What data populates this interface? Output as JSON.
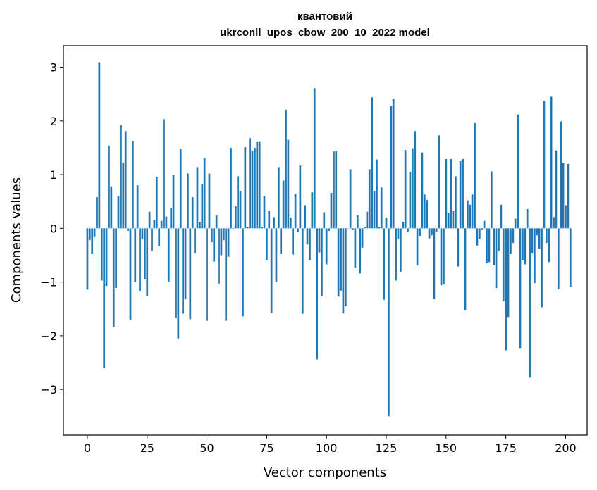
{
  "chart_data": {
    "type": "bar",
    "title_line1": "квантовий",
    "title_line2": "ukrconll_upos_cbow_200_10_2022 model",
    "xlabel": "Vector components",
    "ylabel": "Components values",
    "xlim": [
      -10,
      209
    ],
    "ylim": [
      -3.85,
      3.4
    ],
    "xticks": [
      0,
      25,
      50,
      75,
      100,
      125,
      150,
      175,
      200
    ],
    "yticks": [
      -3,
      -2,
      -1,
      0,
      1,
      2,
      3
    ],
    "grid": false,
    "legend": "none",
    "bar_color": "#1f77b4",
    "values": [
      -1.14,
      -0.22,
      -0.48,
      -0.15,
      0.58,
      3.09,
      -0.97,
      -2.6,
      -1.07,
      1.54,
      0.78,
      -1.83,
      -1.11,
      0.6,
      1.92,
      1.22,
      1.81,
      -0.05,
      -1.7,
      1.63,
      -1.0,
      0.8,
      -1.17,
      -0.2,
      -0.95,
      -1.26,
      0.31,
      -0.42,
      0.15,
      0.96,
      -0.33,
      0.14,
      2.03,
      0.22,
      -0.99,
      0.38,
      1.0,
      -1.67,
      -2.05,
      1.48,
      -1.59,
      -1.32,
      1.02,
      -1.69,
      0.58,
      -0.47,
      1.14,
      0.12,
      0.83,
      1.31,
      -1.72,
      1.02,
      -0.26,
      -0.62,
      0.24,
      -1.03,
      -0.5,
      -0.22,
      -1.72,
      -0.53,
      1.5,
      -0.01,
      0.41,
      0.97,
      0.7,
      -1.64,
      1.51,
      0.02,
      1.68,
      1.44,
      1.5,
      1.62,
      1.62,
      0.03,
      0.6,
      -0.59,
      0.32,
      -1.58,
      0.21,
      -0.99,
      1.14,
      -0.48,
      0.89,
      2.21,
      1.65,
      0.2,
      -0.49,
      0.64,
      -0.07,
      1.17,
      -1.59,
      0.43,
      -0.3,
      -0.59,
      0.67,
      2.61,
      -2.44,
      -0.45,
      -1.26,
      0.3,
      -0.67,
      -0.05,
      0.66,
      1.43,
      1.44,
      -1.27,
      -1.16,
      -1.58,
      -1.45,
      0.0,
      1.1,
      -0.02,
      -0.73,
      0.24,
      -0.84,
      -0.36,
      0.02,
      0.31,
      1.1,
      2.44,
      0.7,
      1.28,
      0.02,
      0.76,
      -1.33,
      0.2,
      -3.5,
      2.28,
      2.41,
      -0.97,
      -0.2,
      -0.81,
      0.12,
      1.46,
      -0.06,
      1.05,
      1.49,
      1.81,
      -0.69,
      -0.14,
      1.41,
      0.63,
      0.53,
      -0.19,
      -0.13,
      -1.31,
      -0.06,
      1.73,
      -1.06,
      -1.04,
      1.29,
      0.28,
      1.29,
      0.32,
      0.97,
      -0.71,
      1.26,
      1.29,
      -1.53,
      0.52,
      0.44,
      0.63,
      1.96,
      -0.32,
      -0.2,
      -0.02,
      0.14,
      -0.65,
      -0.63,
      1.06,
      -0.69,
      -1.11,
      -0.42,
      0.44,
      -1.36,
      -2.27,
      -1.65,
      -0.48,
      -0.27,
      0.18,
      2.12,
      -2.24,
      -0.59,
      -0.67,
      0.36,
      -2.78,
      -0.47,
      -1.02,
      -0.13,
      -0.38,
      -1.47,
      2.37,
      -0.27,
      -0.63,
      2.45,
      0.21,
      1.45,
      -1.13,
      1.99,
      1.21,
      0.43,
      1.2,
      -1.09
    ]
  }
}
